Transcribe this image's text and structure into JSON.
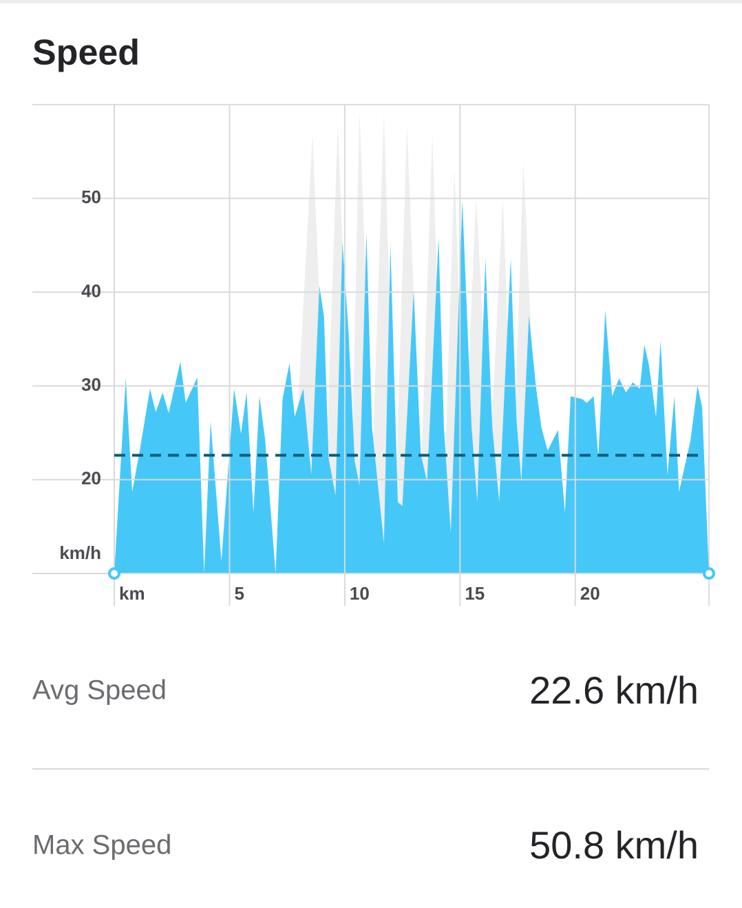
{
  "chart_data": {
    "type": "area",
    "title": "Speed",
    "y_unit": "km/h",
    "ylim": [
      10,
      60
    ],
    "yticks": [
      20,
      30,
      40,
      50
    ],
    "xlim": [
      0,
      25.8
    ],
    "xticks": [
      {
        "value": 0,
        "label": "km"
      },
      5,
      10,
      15,
      20
    ],
    "grid": true,
    "average": 22.6,
    "average_color": "#0b5a78",
    "series": [
      {
        "color": "#eeeeee",
        "x": [
          7.8,
          8.6,
          9.2,
          9.7,
          10.3,
          10.64,
          11.2,
          11.7,
          12.2,
          12.7,
          13.3,
          13.8,
          14.3,
          14.76,
          15.2,
          15.7,
          16.3,
          16.86,
          17.3,
          17.75,
          18.3
        ],
        "values": [
          20,
          56.8,
          22,
          57.9,
          20,
          59.4,
          22,
          59,
          18,
          57.9,
          20,
          56.8,
          18,
          53.1,
          22,
          50.2,
          22,
          50.2,
          20,
          53.9,
          24
        ]
      },
      {
        "name": "Speed",
        "color": "#45c8f8",
        "x": [
          0,
          0.5,
          0.78,
          1.1,
          1.55,
          1.8,
          2.1,
          2.36,
          2.87,
          3.1,
          3.6,
          3.9,
          4.18,
          4.65,
          5.2,
          5.5,
          5.74,
          6.04,
          6.3,
          6.55,
          7.0,
          7.3,
          7.6,
          7.83,
          8.2,
          8.55,
          8.9,
          9.1,
          9.3,
          9.6,
          9.9,
          10.16,
          10.43,
          10.64,
          10.94,
          11.18,
          11.7,
          11.98,
          12.3,
          12.5,
          12.99,
          13.3,
          13.57,
          14.07,
          14.3,
          14.6,
          15.1,
          15.5,
          15.75,
          16.1,
          16.4,
          16.7,
          17.2,
          17.45,
          17.66,
          17.99,
          18.29,
          18.53,
          18.8,
          19.25,
          19.55,
          19.8,
          20.3,
          20.5,
          20.8,
          21.0,
          21.3,
          21.6,
          21.9,
          22.2,
          22.5,
          22.8,
          23.0,
          23.2,
          23.5,
          23.7,
          24.0,
          24.3,
          24.5,
          25.0,
          25.3,
          25.5,
          25.8
        ],
        "values": [
          10,
          30.8,
          18.7,
          23,
          29.7,
          27.2,
          29.3,
          27.1,
          32.6,
          28.2,
          30.9,
          10,
          26.2,
          11.3,
          29.7,
          24.9,
          29.3,
          16.5,
          28.9,
          24.2,
          10,
          28.6,
          32.4,
          26.7,
          29.7,
          20.5,
          40.7,
          37.4,
          22.3,
          18.3,
          45.3,
          35.9,
          22,
          19.4,
          46.3,
          25.6,
          13.2,
          45.1,
          17.6,
          17.2,
          40.2,
          22.7,
          19.8,
          45.8,
          25.6,
          14.3,
          49.8,
          25.6,
          17.6,
          43.6,
          25.6,
          17.6,
          43.6,
          26.4,
          19.8,
          37.5,
          30,
          25.6,
          23.1,
          25.3,
          16.5,
          28.9,
          28.6,
          28.2,
          28.9,
          22.3,
          38.1,
          28.9,
          30.8,
          29.3,
          30.4,
          29.7,
          34.4,
          32.2,
          26.7,
          34.8,
          20.5,
          28.9,
          18.7,
          24.2,
          30,
          27.8,
          10
        ]
      }
    ]
  },
  "stats": [
    {
      "label": "Avg Speed",
      "value": "22.6 km/h"
    },
    {
      "label": "Max Speed",
      "value": "50.8 km/h"
    }
  ]
}
